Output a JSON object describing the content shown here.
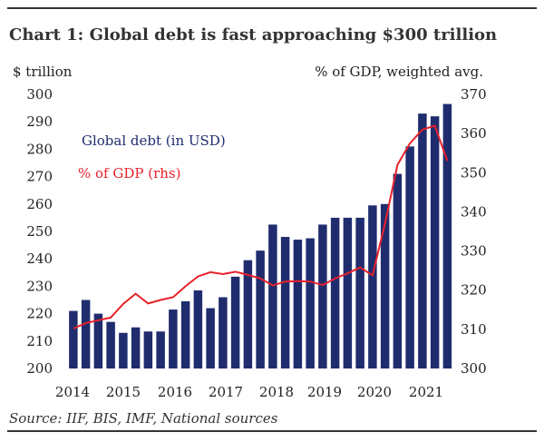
{
  "chart_data": {
    "type": "bar+line",
    "title": "Chart 1: Global debt is fast approaching $300 trillion",
    "source": "Source: IIF, BIS, IMF, National sources",
    "y_left_label": "$ trillion",
    "y_right_label": "% of GDP, weighted avg.",
    "y_left_range": [
      200,
      300
    ],
    "y_right_range": [
      300,
      370
    ],
    "y_left_ticks": [
      "200",
      "210",
      "220",
      "230",
      "240",
      "250",
      "260",
      "270",
      "280",
      "290",
      "300"
    ],
    "y_right_ticks": [
      "300",
      "310",
      "320",
      "330",
      "340",
      "350",
      "360",
      "370"
    ],
    "x_year_labels": [
      "2014",
      "2015",
      "2016",
      "2017",
      "2018",
      "2019",
      "2020",
      "2021"
    ],
    "legend": {
      "bars": "Global debt (in USD)",
      "line": "% of GDP (rhs)"
    },
    "colors": {
      "bars": "#1f2d6e",
      "line": "#e8202a"
    },
    "bar_series": {
      "name": "Global debt (in USD)",
      "values": [
        221,
        225,
        220,
        217,
        213,
        215,
        213.5,
        213.5,
        221.5,
        224.5,
        228.5,
        222,
        226,
        233.5,
        239.5,
        243,
        252.5,
        248,
        247,
        247.5,
        252.5,
        255,
        255,
        255,
        259.5,
        260,
        271,
        281,
        293,
        292,
        296.5
      ]
    },
    "line_series": {
      "name": "% of GDP (rhs)",
      "values": [
        310.2,
        311.6,
        312.3,
        313.0,
        316.5,
        319.1,
        316.6,
        317.5,
        318.2,
        321.0,
        323.5,
        324.6,
        324.1,
        324.7,
        323.9,
        323.0,
        321.2,
        322.2,
        322.3,
        322.2,
        321.3,
        323.0,
        324.3,
        325.8,
        323.8,
        337.0,
        352.0,
        357.5,
        361.0,
        362.0,
        353.0
      ]
    }
  }
}
